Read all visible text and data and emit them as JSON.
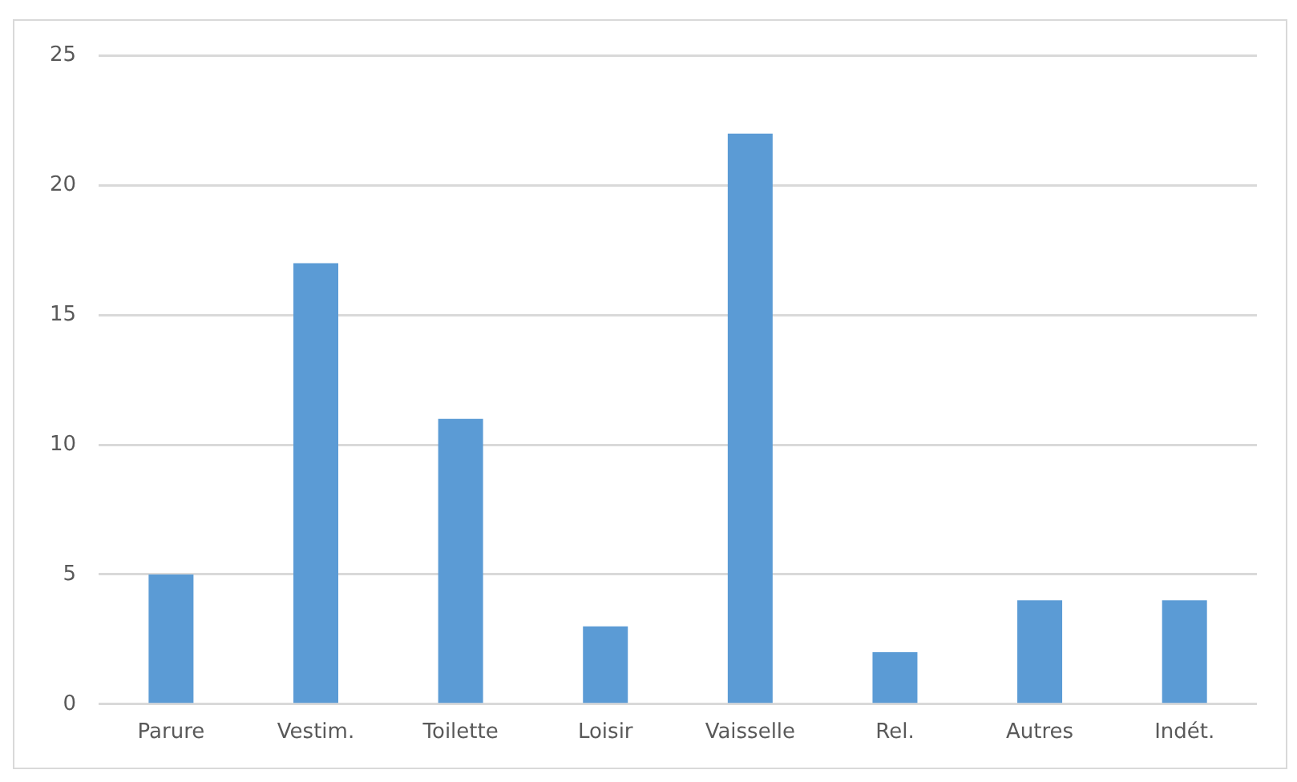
{
  "chart_data": {
    "type": "bar",
    "categories": [
      "Parure",
      "Vestim.",
      "Toilette",
      "Loisir",
      "Vaisselle",
      "Rel.",
      "Autres",
      "Indét."
    ],
    "values": [
      5,
      17,
      11,
      3,
      22,
      2,
      4,
      4
    ],
    "color": "#5b9bd5",
    "ylim": [
      0,
      25
    ],
    "yticks": [
      0,
      5,
      10,
      15,
      20,
      25
    ],
    "grid": "y",
    "legend": false
  }
}
